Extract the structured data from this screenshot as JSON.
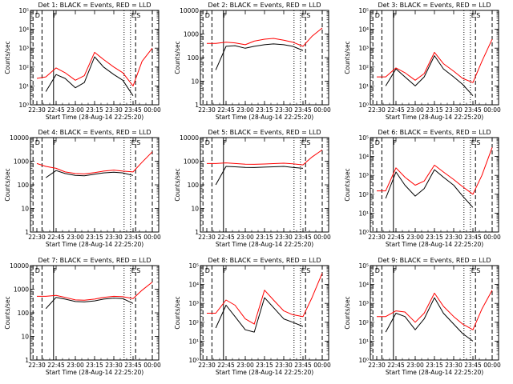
{
  "figure": {
    "ylabel": "Counts/sec",
    "xlabel": "Start Time (28-Aug-14 22:25:20)",
    "series_colors": {
      "events": "#000000",
      "lld": "#ff0000"
    }
  },
  "chart_data": [
    {
      "type": "line",
      "title": "Det 1: BLACK = Events, RED = LLD",
      "xlabel": "Start Time (28-Aug-14 22:25:20)",
      "ylabel": "Counts/sec",
      "yscale": "log",
      "ylim": [
        1,
        100000
      ],
      "yticks": [
        "10⁰",
        "10¹",
        "10²",
        "10³",
        "10⁴",
        "10⁵"
      ],
      "xtick_labels": [
        "22:30",
        "22:45",
        "23:00",
        "23:15",
        "23:30",
        "23:45",
        "00:00"
      ],
      "annotations": [
        "D",
        "F",
        "E",
        "S"
      ],
      "x": [
        "22:30",
        "22:37",
        "22:45",
        "22:52",
        "23:00",
        "23:07",
        "23:15",
        "23:22",
        "23:30",
        "23:37",
        "23:45",
        "23:52",
        "00:00"
      ],
      "series": [
        {
          "values": [
            null,
            5,
            40,
            25,
            8,
            15,
            350,
            100,
            40,
            20,
            3,
            null,
            null
          ]
        },
        {
          "values": [
            25,
            30,
            90,
            50,
            20,
            35,
            600,
            250,
            100,
            50,
            10,
            200,
            1000
          ]
        }
      ]
    },
    {
      "type": "line",
      "title": "Det 2: BLACK = Events, RED = LLD",
      "xlabel": "Start Time (28-Aug-14 22:25:20)",
      "ylabel": "Counts/sec",
      "yscale": "log",
      "ylim": [
        1,
        10000
      ],
      "yticks": [
        "1",
        "10",
        "100",
        "1000",
        "10000"
      ],
      "xtick_labels": [
        "22:30",
        "22:45",
        "23:00",
        "23:15",
        "23:30",
        "23:45",
        "00:00"
      ],
      "annotations": [
        "D",
        "F",
        "E",
        "S"
      ],
      "x": [
        "22:30",
        "22:37",
        "22:45",
        "22:52",
        "23:00",
        "23:07",
        "23:15",
        "23:22",
        "23:30",
        "23:37",
        "23:45",
        "23:52",
        "00:00"
      ],
      "series": [
        {
          "values": [
            null,
            30,
            300,
            320,
            250,
            300,
            350,
            380,
            350,
            300,
            200,
            null,
            null
          ]
        },
        {
          "values": [
            400,
            400,
            450,
            420,
            350,
            500,
            600,
            650,
            550,
            450,
            300,
            800,
            1800
          ]
        }
      ]
    },
    {
      "type": "line",
      "title": "Det 3: BLACK = Events, RED = LLD",
      "xlabel": "Start Time (28-Aug-14 22:25:20)",
      "ylabel": "Counts/sec",
      "yscale": "log",
      "ylim": [
        1,
        100000
      ],
      "yticks": [
        "10⁰",
        "10¹",
        "10²",
        "10³",
        "10⁴",
        "10⁵"
      ],
      "xtick_labels": [
        "22:30",
        "22:45",
        "23:00",
        "23:15",
        "23:30",
        "23:45",
        "00:00"
      ],
      "annotations": [
        "D",
        "F",
        "E",
        "S"
      ],
      "x": [
        "22:30",
        "22:37",
        "22:45",
        "22:52",
        "23:00",
        "23:07",
        "23:15",
        "23:22",
        "23:30",
        "23:37",
        "23:45",
        "23:52",
        "00:00"
      ],
      "series": [
        {
          "values": [
            null,
            10,
            80,
            30,
            10,
            30,
            400,
            80,
            30,
            12,
            3,
            null,
            null
          ]
        },
        {
          "values": [
            30,
            30,
            90,
            50,
            20,
            45,
            600,
            150,
            60,
            25,
            15,
            200,
            3000
          ]
        }
      ]
    },
    {
      "type": "line",
      "title": "Det 4: BLACK = Events, RED = LLD",
      "xlabel": "Start Time (28-Aug-14 22:25:20)",
      "ylabel": "Counts/sec",
      "yscale": "log",
      "ylim": [
        1,
        10000
      ],
      "yticks": [
        "1",
        "10",
        "100",
        "1000",
        "10000"
      ],
      "xtick_labels": [
        "22:30",
        "22:45",
        "23:00",
        "23:15",
        "23:30",
        "23:45",
        "00:00"
      ],
      "annotations": [
        "D",
        "F",
        "E",
        "S"
      ],
      "x": [
        "22:30",
        "22:37",
        "22:45",
        "22:52",
        "23:00",
        "23:07",
        "23:15",
        "23:22",
        "23:30",
        "23:37",
        "23:45",
        "23:52",
        "00:00"
      ],
      "series": [
        {
          "values": [
            null,
            200,
            400,
            300,
            250,
            240,
            280,
            320,
            340,
            320,
            250,
            null,
            null
          ]
        },
        {
          "values": [
            800,
            600,
            500,
            350,
            300,
            290,
            330,
            380,
            420,
            380,
            350,
            900,
            2500
          ]
        }
      ]
    },
    {
      "type": "line",
      "title": "Det 5: BLACK = Events, RED = LLD",
      "xlabel": "Start Time (28-Aug-14 22:25:20)",
      "ylabel": "Counts/sec",
      "yscale": "log",
      "ylim": [
        1,
        10000
      ],
      "yticks": [
        "1",
        "10",
        "100",
        "1000",
        "10000"
      ],
      "xtick_labels": [
        "22:30",
        "22:45",
        "23:00",
        "23:15",
        "23:30",
        "23:45",
        "00:00"
      ],
      "annotations": [
        "D",
        "F",
        "E",
        "S"
      ],
      "x": [
        "22:30",
        "22:37",
        "22:45",
        "22:52",
        "23:00",
        "23:07",
        "23:15",
        "23:22",
        "23:30",
        "23:37",
        "23:45",
        "23:52",
        "00:00"
      ],
      "series": [
        {
          "values": [
            null,
            100,
            600,
            580,
            550,
            540,
            560,
            580,
            600,
            550,
            500,
            null,
            null
          ]
        },
        {
          "values": [
            800,
            800,
            850,
            800,
            750,
            740,
            760,
            790,
            820,
            780,
            700,
            1500,
            3000
          ]
        }
      ]
    },
    {
      "type": "line",
      "title": "Det 6: BLACK = Events, RED = LLD",
      "xlabel": "Start Time (28-Aug-14 22:25:20)",
      "ylabel": "Counts/sec",
      "yscale": "log",
      "ylim": [
        1,
        100000
      ],
      "yticks": [
        "10⁰",
        "10¹",
        "10²",
        "10³",
        "10⁴",
        "10⁵"
      ],
      "xtick_labels": [
        "22:30",
        "22:45",
        "23:00",
        "23:15",
        "23:30",
        "23:45",
        "00:00"
      ],
      "annotations": [
        "D",
        "F",
        "E",
        "S"
      ],
      "x": [
        "22:30",
        "22:37",
        "22:45",
        "22:52",
        "23:00",
        "23:07",
        "23:15",
        "23:22",
        "23:30",
        "23:37",
        "23:45",
        "23:52",
        "00:00"
      ],
      "series": [
        {
          "values": [
            null,
            60,
            1500,
            300,
            80,
            200,
            2000,
            800,
            300,
            80,
            20,
            null,
            null
          ]
        },
        {
          "values": [
            150,
            150,
            2500,
            800,
            300,
            500,
            3500,
            1500,
            600,
            250,
            100,
            1000,
            30000
          ]
        }
      ]
    },
    {
      "type": "line",
      "title": "Det 7: BLACK = Events, RED = LLD",
      "xlabel": "Start Time (28-Aug-14 22:25:20)",
      "ylabel": "Counts/sec",
      "yscale": "log",
      "ylim": [
        1,
        10000
      ],
      "yticks": [
        "1",
        "10",
        "100",
        "1000",
        "10000"
      ],
      "xtick_labels": [
        "22:30",
        "22:45",
        "23:00",
        "23:15",
        "23:30",
        "23:45",
        "00:00"
      ],
      "annotations": [
        "D",
        "F",
        "E",
        "S"
      ],
      "x": [
        "22:30",
        "22:37",
        "22:45",
        "22:52",
        "23:00",
        "23:07",
        "23:15",
        "23:22",
        "23:30",
        "23:37",
        "23:45",
        "23:52",
        "00:00"
      ],
      "series": [
        {
          "values": [
            null,
            150,
            450,
            380,
            300,
            290,
            320,
            380,
            420,
            400,
            250,
            null,
            null
          ]
        },
        {
          "values": [
            500,
            500,
            550,
            450,
            350,
            340,
            380,
            450,
            500,
            480,
            400,
            900,
            2000
          ]
        }
      ]
    },
    {
      "type": "line",
      "title": "Det 8: BLACK = Events, RED = LLD",
      "xlabel": "Start Time (28-Aug-14 22:25:20)",
      "ylabel": "Counts/sec",
      "yscale": "log",
      "ylim": [
        1,
        100000
      ],
      "yticks": [
        "10⁰",
        "10¹",
        "10²",
        "10³",
        "10⁴",
        "10⁵"
      ],
      "xtick_labels": [
        "22:30",
        "22:45",
        "23:00",
        "23:15",
        "23:30",
        "23:45",
        "00:00"
      ],
      "annotations": [
        "D",
        "F",
        "E",
        "S"
      ],
      "x": [
        "22:30",
        "22:37",
        "22:45",
        "22:52",
        "23:00",
        "23:07",
        "23:15",
        "23:22",
        "23:30",
        "23:37",
        "23:45",
        "23:52",
        "00:00"
      ],
      "series": [
        {
          "values": [
            null,
            50,
            800,
            200,
            40,
            30,
            2000,
            600,
            150,
            100,
            60,
            null,
            null
          ]
        },
        {
          "values": [
            300,
            300,
            1500,
            800,
            150,
            80,
            5000,
            1500,
            400,
            250,
            200,
            2000,
            40000
          ]
        }
      ]
    },
    {
      "type": "line",
      "title": "Det 9: BLACK = Events, RED = LLD",
      "xlabel": "Start Time (28-Aug-14 22:25:20)",
      "ylabel": "Counts/sec",
      "yscale": "log",
      "ylim": [
        1,
        100000
      ],
      "yticks": [
        "10⁰",
        "10¹",
        "10²",
        "10³",
        "10⁴",
        "10⁵"
      ],
      "xtick_labels": [
        "22:30",
        "22:45",
        "23:00",
        "23:15",
        "23:30",
        "23:45",
        "00:00"
      ],
      "annotations": [
        "D",
        "F",
        "E",
        "S"
      ],
      "x": [
        "22:30",
        "22:37",
        "22:45",
        "22:52",
        "23:00",
        "23:07",
        "23:15",
        "23:22",
        "23:30",
        "23:37",
        "23:45",
        "23:52",
        "00:00"
      ],
      "series": [
        {
          "values": [
            null,
            30,
            300,
            200,
            40,
            150,
            2000,
            300,
            80,
            25,
            10,
            null,
            null
          ]
        },
        {
          "values": [
            200,
            200,
            400,
            350,
            100,
            300,
            3500,
            700,
            200,
            80,
            40,
            500,
            5000
          ]
        }
      ]
    }
  ]
}
